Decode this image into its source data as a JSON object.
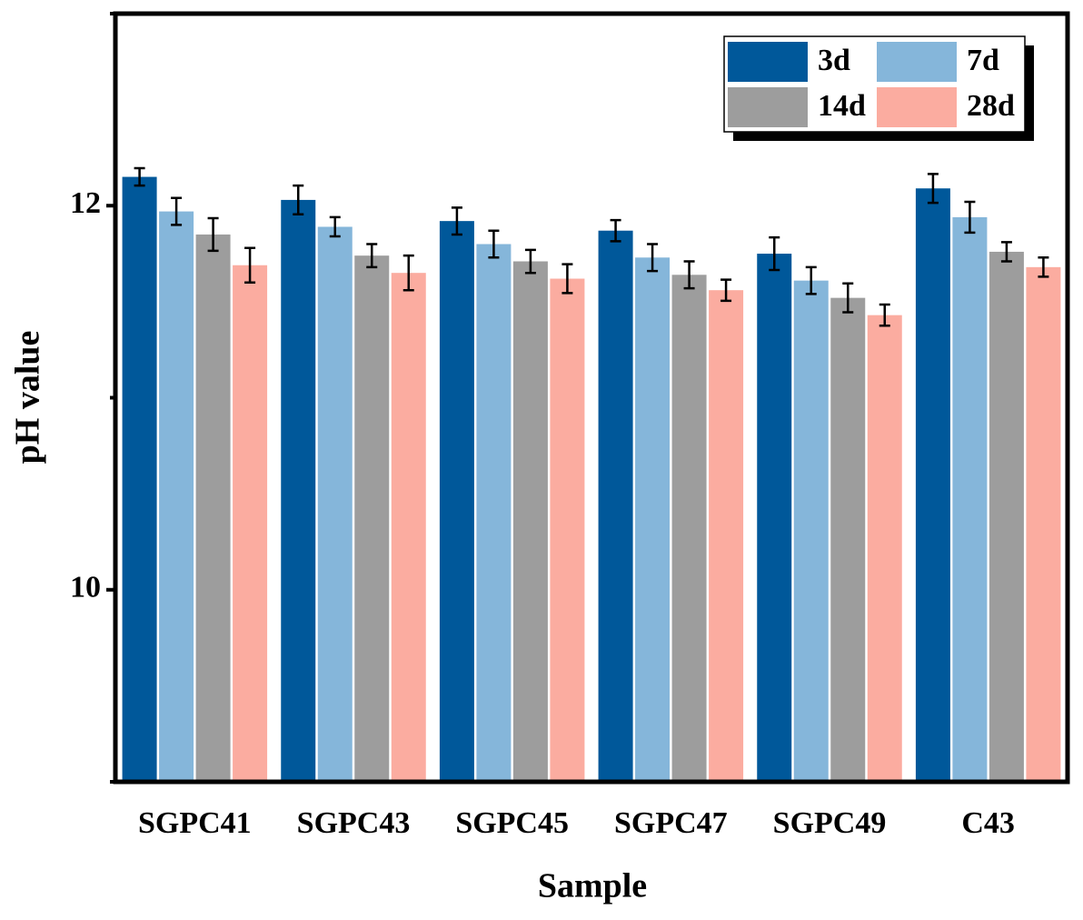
{
  "chart_data": {
    "type": "bar",
    "x_label": "Sample",
    "y_label": "pH value",
    "categories": [
      "SGPC41",
      "SGPC43",
      "SGPC45",
      "SGPC47",
      "SGPC49",
      "C43"
    ],
    "series": [
      {
        "name": "3d",
        "color": "#00589a",
        "values": [
          12.15,
          12.03,
          11.92,
          11.87,
          11.75,
          12.09
        ],
        "errors": [
          0.045,
          0.075,
          0.07,
          0.055,
          0.085,
          0.075
        ]
      },
      {
        "name": "7d",
        "color": "#85b6da",
        "values": [
          11.97,
          11.89,
          11.8,
          11.73,
          11.61,
          11.94
        ],
        "errors": [
          0.07,
          0.05,
          0.07,
          0.07,
          0.07,
          0.08
        ]
      },
      {
        "name": "14d",
        "color": "#9d9d9d",
        "values": [
          11.85,
          11.74,
          11.71,
          11.64,
          11.52,
          11.76
        ],
        "errors": [
          0.085,
          0.06,
          0.06,
          0.07,
          0.075,
          0.05
        ]
      },
      {
        "name": "28d",
        "color": "#fbaca0",
        "values": [
          11.69,
          11.65,
          11.62,
          11.56,
          11.43,
          11.68
        ],
        "errors": [
          0.09,
          0.09,
          0.075,
          0.055,
          0.055,
          0.05
        ]
      }
    ],
    "ylim": [
      9,
      13
    ],
    "yticks": [
      10,
      12
    ],
    "minor_yticks": [
      9,
      11,
      13
    ],
    "legend": "upper right"
  }
}
